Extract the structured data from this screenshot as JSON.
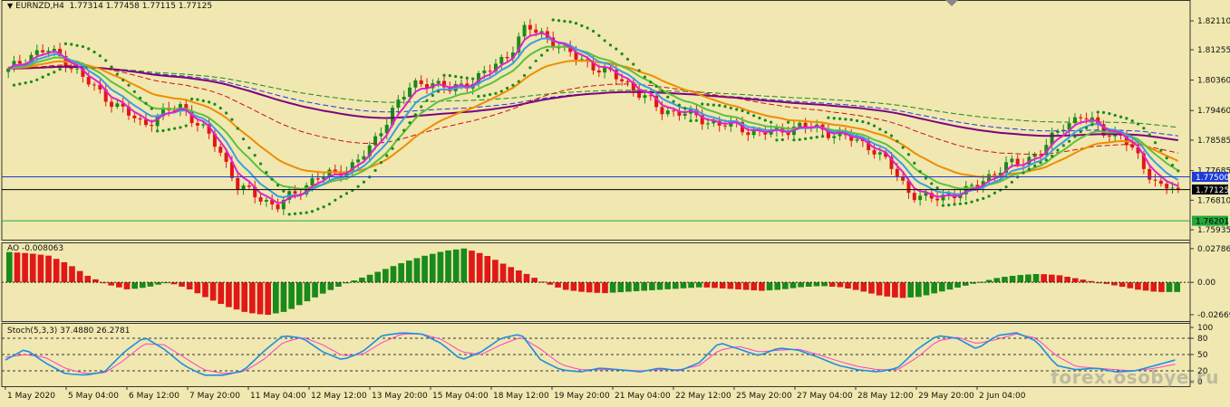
{
  "header": {
    "symbol": "EURNZD,H4",
    "ohlc": "1.77314 1.77458 1.77115 1.77125"
  },
  "price_axis": {
    "ticks": [
      "1.82110",
      "1.81255",
      "1.80360",
      "1.79460",
      "1.78585",
      "1.77685",
      "1.76810",
      "1.75935"
    ],
    "markers": [
      {
        "label": "1.77500",
        "color": "#1e3bd6",
        "text_color": "#ffffff"
      },
      {
        "label": "1.77125",
        "color": "#000000",
        "text_color": "#ffffff"
      },
      {
        "label": "1.76201",
        "color": "#22a83a",
        "text_color": "#000000"
      }
    ]
  },
  "ao": {
    "label": "AO -0.008063",
    "ticks": [
      "0.027867",
      "0.00",
      "-0.02669"
    ]
  },
  "stoch": {
    "label": "Stoch(5,3,3) 37.4880 26.2781",
    "ticks": [
      "100",
      "80",
      "50",
      "20",
      "0"
    ]
  },
  "time_axis": {
    "labels": [
      "1 May 2020",
      "5 May 04:00",
      "6 May 12:00",
      "7 May 20:00",
      "11 May 04:00",
      "12 May 12:00",
      "13 May 20:00",
      "15 May 04:00",
      "18 May 12:00",
      "19 May 20:00",
      "21 May 04:00",
      "22 May 12:00",
      "25 May 20:00",
      "27 May 04:00",
      "28 May 12:00",
      "29 May 20:00",
      "2 Jun 04:00"
    ]
  },
  "watermark": "forex.osobye.ru",
  "colors": {
    "background": "#f0e8b0",
    "bull": "#1a8a1a",
    "bear": "#e01818"
  },
  "chart_data": {
    "type": "candlestick",
    "symbol": "EURNZD",
    "timeframe": "H4",
    "y_range": [
      1.7575,
      1.8262
    ],
    "horizontal_levels": [
      1.775,
      1.77125,
      1.76201
    ],
    "anchors": {
      "close": [
        1.8062,
        1.8108,
        1.8125,
        1.8095,
        1.8035,
        1.799,
        1.7945,
        1.7905,
        1.7935,
        1.796,
        1.79,
        1.783,
        1.772,
        1.769,
        1.7665,
        1.77,
        1.775,
        1.7755,
        1.779,
        1.784,
        1.795,
        1.8015,
        1.8035,
        1.8005,
        1.803,
        1.806,
        1.811,
        1.819,
        1.817,
        1.812,
        1.8095,
        1.806,
        1.804,
        1.799,
        1.795,
        1.794,
        1.7925,
        1.7905,
        1.79,
        1.788,
        1.788,
        1.79,
        1.7895,
        1.788,
        1.786,
        1.784,
        1.778,
        1.7705,
        1.768,
        1.77,
        1.7705,
        1.775,
        1.778,
        1.78,
        1.783,
        1.7905,
        1.793,
        1.789,
        1.787,
        1.78,
        1.772,
        1.7715
      ],
      "ao": [
        0.025,
        0.024,
        0.022,
        0.015,
        0.005,
        -0.002,
        -0.006,
        -0.004,
        0.0,
        -0.005,
        -0.013,
        -0.02,
        -0.025,
        -0.027,
        -0.024,
        -0.016,
        -0.008,
        -0.001,
        0.005,
        0.011,
        0.017,
        0.022,
        0.026,
        0.028,
        0.023,
        0.015,
        0.008,
        0.0,
        -0.006,
        -0.008,
        -0.009,
        -0.008,
        -0.007,
        -0.006,
        -0.005,
        -0.004,
        -0.005,
        -0.006,
        -0.007,
        -0.006,
        -0.004,
        -0.003,
        -0.004,
        -0.007,
        -0.011,
        -0.013,
        -0.012,
        -0.008,
        -0.004,
        0.0,
        0.004,
        0.006,
        0.007,
        0.006,
        0.003,
        0.0,
        -0.003,
        -0.006,
        -0.008,
        -0.008
      ],
      "stoch_k": [
        40,
        60,
        35,
        15,
        12,
        18,
        55,
        82,
        60,
        30,
        12,
        12,
        20,
        55,
        85,
        80,
        55,
        40,
        55,
        85,
        90,
        88,
        70,
        40,
        55,
        80,
        88,
        40,
        22,
        18,
        25,
        22,
        18,
        25,
        20,
        35,
        72,
        60,
        48,
        62,
        58,
        45,
        30,
        22,
        18,
        25,
        60,
        85,
        80,
        60,
        85,
        90,
        75,
        30,
        22,
        25,
        18,
        20,
        30,
        40
      ],
      "stoch_d": [
        45,
        50,
        45,
        25,
        15,
        16,
        40,
        70,
        68,
        45,
        22,
        15,
        18,
        40,
        72,
        82,
        68,
        48,
        50,
        72,
        88,
        88,
        78,
        55,
        50,
        68,
        82,
        60,
        32,
        22,
        22,
        22,
        20,
        22,
        22,
        30,
        58,
        65,
        55,
        58,
        60,
        50,
        38,
        28,
        22,
        22,
        45,
        75,
        82,
        70,
        78,
        88,
        80,
        48,
        28,
        25,
        22,
        20,
        25,
        32
      ]
    }
  }
}
